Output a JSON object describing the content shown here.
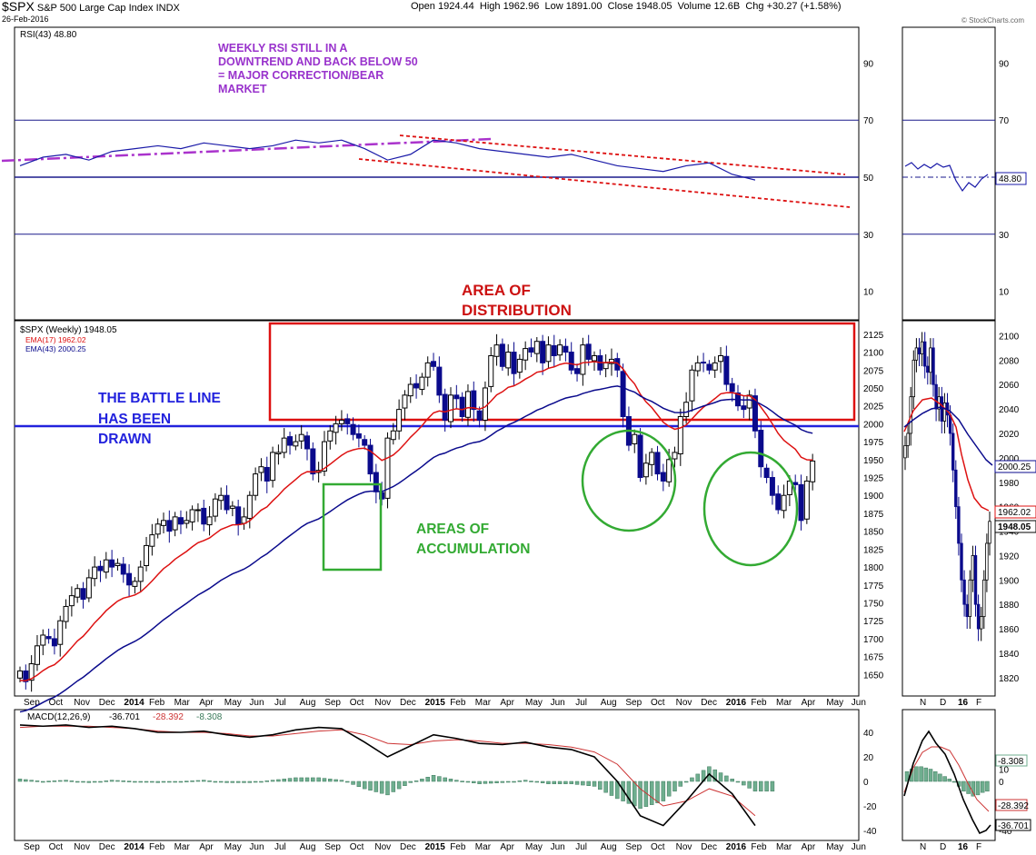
{
  "header": {
    "symbol": "$SPX",
    "name": "S&P 500 Large Cap Index",
    "exchange": "INDX",
    "date": "26-Feb-2016",
    "open_label": "Open",
    "open": "1924.44",
    "high_label": "High",
    "high": "1962.96",
    "low_label": "Low",
    "low": "1891.00",
    "close_label": "Close",
    "close": "1948.05",
    "volume_label": "Volume",
    "volume": "12.6B",
    "chg_label": "Chg",
    "chg": "+30.27 (+1.58%)",
    "watermark": "© StockCharts.com"
  },
  "colors": {
    "up": "#000000",
    "down": "#0a0a8c",
    "ema17": "#dd1111",
    "ema43": "#0a0a8c",
    "rsi": "#1a1aa8",
    "trend_purple": "#aa33cc",
    "trend_red": "#dd1111",
    "battle_line": "#2222dd",
    "distribution": "#dd1111",
    "accumulation": "#33aa33",
    "macd_hist": "#6fae8f",
    "macd_line": "#000000",
    "macd_signal": "#cc3333"
  },
  "chart_data": [
    {
      "type": "line",
      "panel": "rsi",
      "legend": "RSI(43) 48.80",
      "ylim": [
        0,
        100
      ],
      "y_ticks": [
        10,
        30,
        50,
        70,
        90
      ],
      "reference_lines": [
        30,
        50,
        70
      ],
      "last_value": "48.80",
      "x_weeks": [
        0,
        4,
        8,
        12,
        16,
        20,
        24,
        28,
        32,
        36,
        40,
        44,
        48,
        52,
        56,
        60,
        64,
        68,
        72,
        76,
        80,
        84,
        88,
        92,
        96,
        100,
        104,
        108,
        112,
        116,
        120,
        124,
        128
      ],
      "values": [
        54,
        57,
        58,
        56,
        59,
        60,
        61,
        60,
        62,
        61,
        60,
        61,
        63,
        62,
        63,
        60,
        56,
        58,
        63,
        62,
        60,
        59,
        58,
        57,
        58,
        56,
        54,
        53,
        52,
        54,
        55,
        51,
        49
      ],
      "annotation": "WEEKLY RSI STILL IN A DOWNTREND AND BACK BELOW 50 = MAJOR CORRECTION/BEAR MARKET"
    },
    {
      "type": "candlestick",
      "panel": "price",
      "legend_title": "$SPX (Weekly) 1948.05",
      "legend_ema17": "EMA(17) 1962.02",
      "legend_ema43": "EMA(43) 2000.25",
      "ylim": [
        1620,
        2140
      ],
      "y_ticks": [
        1650,
        1675,
        1700,
        1725,
        1750,
        1775,
        1800,
        1825,
        1850,
        1875,
        1900,
        1925,
        1950,
        1975,
        2000,
        2025,
        2050,
        2075,
        2100,
        2125
      ],
      "x_month_labels": [
        "Sep",
        "Oct",
        "Nov",
        "Dec",
        "2014",
        "Feb",
        "Mar",
        "Apr",
        "May",
        "Jun",
        "Jul",
        "Aug",
        "Sep",
        "Oct",
        "Nov",
        "Dec",
        "2015",
        "Feb",
        "Mar",
        "Apr",
        "May",
        "Jun",
        "Jul",
        "Aug",
        "Sep",
        "Oct",
        "Nov",
        "Dec",
        "2016",
        "Feb",
        "Mar",
        "Apr",
        "May",
        "Jun"
      ],
      "closes": [
        1655,
        1640,
        1665,
        1690,
        1705,
        1700,
        1690,
        1725,
        1745,
        1760,
        1770,
        1755,
        1785,
        1800,
        1795,
        1810,
        1800,
        1805,
        1790,
        1775,
        1780,
        1800,
        1830,
        1845,
        1860,
        1865,
        1850,
        1870,
        1860,
        1865,
        1880,
        1880,
        1860,
        1870,
        1895,
        1900,
        1880,
        1885,
        1860,
        1870,
        1900,
        1930,
        1940,
        1920,
        1960,
        1960,
        1980,
        1970,
        1975,
        1985,
        1965,
        1930,
        1935,
        1975,
        1990,
        2000,
        2005,
        2000,
        1985,
        1980,
        1970,
        1930,
        1905,
        1895,
        1980,
        1990,
        2020,
        2040,
        2055,
        2050,
        2065,
        2085,
        2080,
        2040,
        2005,
        2040,
        2035,
        2010,
        2045,
        2020,
        2005,
        2050,
        2095,
        2110,
        2080,
        2100,
        2070,
        2090,
        2105,
        2100,
        2115,
        2085,
        2110,
        2095,
        2110,
        2100,
        2075,
        2070,
        2110,
        2090,
        2095,
        2075,
        2085,
        2090,
        2075,
        2010,
        1970,
        1985,
        1925,
        1945,
        1960,
        1930,
        1920,
        1950,
        1960,
        2010,
        2030,
        2075,
        2085,
        2085,
        2075,
        2085,
        2095,
        2055,
        2045,
        2025,
        2020,
        2040,
        1990,
        1940,
        1925,
        1900,
        1880,
        1900,
        1920,
        1915,
        1865,
        1920,
        1948
      ],
      "ema17_last": "1962.02",
      "ema43_last": "2000.25",
      "battle_line": 2000,
      "distribution_zone": {
        "label": "AREA OF DISTRIBUTION",
        "low": 2010,
        "high": 2140
      },
      "accumulation_label": "AREAS OF ACCUMULATION",
      "battle_line_label": "THE BATTLE LINE HAS BEEN DRAWN"
    },
    {
      "type": "line",
      "panel": "price-daily-inset",
      "y_ticks": [
        1820,
        1840,
        1860,
        1880,
        1900,
        1920,
        1940,
        1960,
        1980,
        2000,
        2020,
        2040,
        2060,
        2080,
        2100
      ],
      "x_labels": [
        "N",
        "D",
        "16",
        "F"
      ],
      "close_label": "1948.05",
      "ema17_label": "1962.02",
      "ema43_label": "2000.25"
    },
    {
      "type": "bar",
      "panel": "macd",
      "legend_title": "MACD(12,26,9)",
      "legend_macd": "-36.701",
      "legend_signal": "-28.392",
      "legend_hist": "-8.308",
      "ylim": [
        -45,
        55
      ],
      "y_ticks": [
        -40,
        -20,
        0,
        20,
        40
      ],
      "x_weeks": [
        0,
        4,
        8,
        12,
        16,
        20,
        24,
        28,
        32,
        36,
        40,
        44,
        48,
        52,
        56,
        60,
        64,
        68,
        72,
        76,
        80,
        84,
        88,
        92,
        96,
        100,
        104,
        108,
        112,
        116,
        120,
        124,
        128
      ],
      "macd": [
        46,
        45,
        46,
        44,
        45,
        43,
        40,
        40,
        41,
        38,
        36,
        38,
        42,
        44,
        43,
        32,
        20,
        29,
        38,
        35,
        31,
        30,
        32,
        28,
        26,
        20,
        0,
        -28,
        -36,
        -16,
        6,
        -10,
        -36
      ],
      "signal": [
        44,
        45,
        45,
        45,
        44,
        43,
        41,
        40,
        40,
        39,
        37,
        37,
        39,
        41,
        42,
        38,
        31,
        30,
        33,
        34,
        33,
        31,
        31,
        30,
        28,
        24,
        14,
        -6,
        -20,
        -16,
        -6,
        -12,
        -28
      ],
      "macd_last": "-36.701",
      "signal_last": "-28.392",
      "hist_last": "-8.308"
    },
    {
      "type": "bar",
      "panel": "macd-daily-inset",
      "y_ticks": [
        -40,
        -20,
        0,
        10
      ],
      "x_labels": [
        "N",
        "D",
        "16",
        "F"
      ],
      "macd_label": "-36.701",
      "signal_label": "-28.392",
      "hist_label": "-8.308"
    }
  ]
}
